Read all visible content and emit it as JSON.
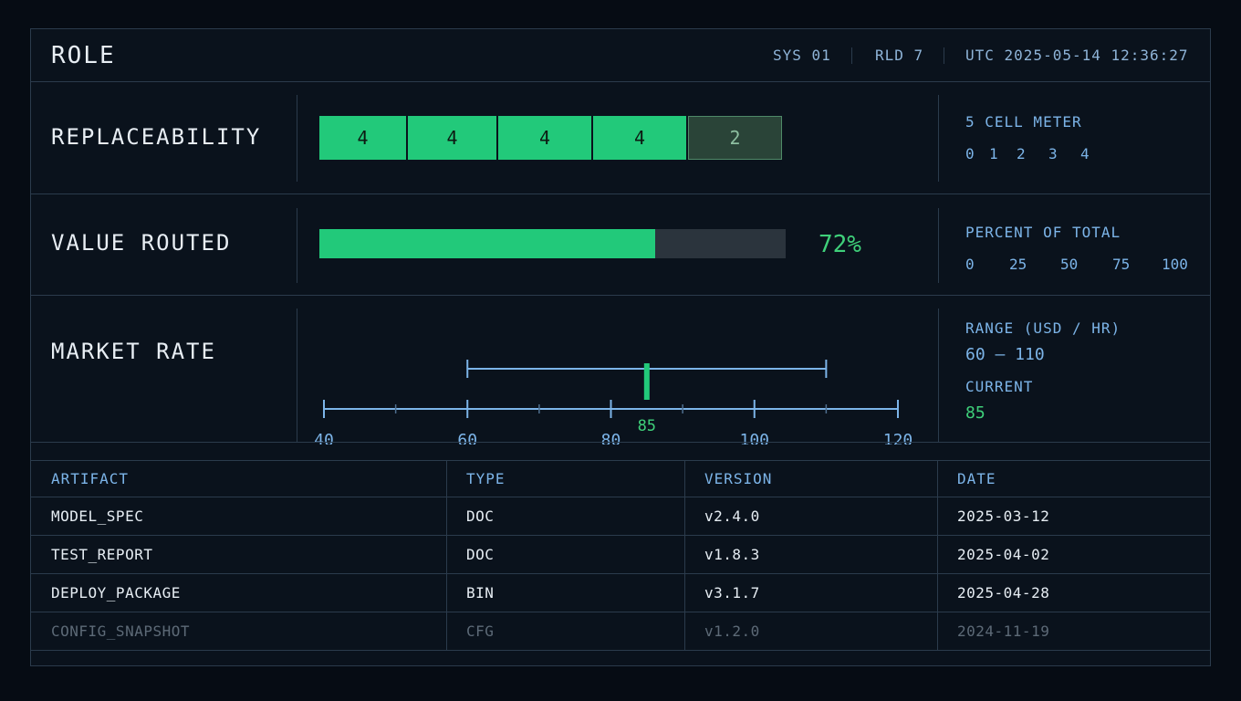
{
  "header": {
    "title": "ROLE",
    "sys": "SYS 01",
    "rld": "RLD 7",
    "utc": "UTC 2025-05-14 12:36:27"
  },
  "replaceability": {
    "label": "REPLACEABILITY",
    "cells": [
      "4",
      "4",
      "4",
      "4",
      "2"
    ],
    "active_cells": 4,
    "side_title": "5 CELL METER",
    "scale": [
      "0",
      "1",
      "2",
      "3",
      "4"
    ]
  },
  "value_routed": {
    "label": "VALUE ROUTED",
    "percent": 72,
    "percent_label": "72%",
    "side_title": "PERCENT OF TOTAL",
    "scale": [
      "0",
      "25",
      "50",
      "75",
      "100"
    ]
  },
  "market_rate": {
    "label": "MARKET RATE",
    "axis_min": 40,
    "axis_max": 120,
    "ticks": [
      "40",
      "60",
      "80",
      "100",
      "120"
    ],
    "range_low": 60,
    "range_high": 110,
    "current": 85,
    "current_label": "85",
    "side_range_title": "RANGE (USD / HR)",
    "side_range_value": "60 – 110",
    "side_current_title": "CURRENT",
    "side_current_value": "85"
  },
  "table": {
    "columns": [
      "ARTIFACT",
      "TYPE",
      "VERSION",
      "DATE"
    ],
    "rows": [
      [
        "MODEL_SPEC",
        "DOC",
        "v2.4.0",
        "2025-03-12"
      ],
      [
        "TEST_REPORT",
        "DOC",
        "v1.8.3",
        "2025-04-02"
      ],
      [
        "DEPLOY_PACKAGE",
        "BIN",
        "v3.1.7",
        "2025-04-28"
      ],
      [
        "CONFIG_SNAPSHOT",
        "CFG",
        "v1.2.0",
        "2024-11-19"
      ]
    ],
    "dim_rows": [
      3
    ]
  },
  "colors": {
    "accent_green": "#22c97a",
    "accent_blue": "#7cb4e8",
    "background": "#0a121c"
  }
}
